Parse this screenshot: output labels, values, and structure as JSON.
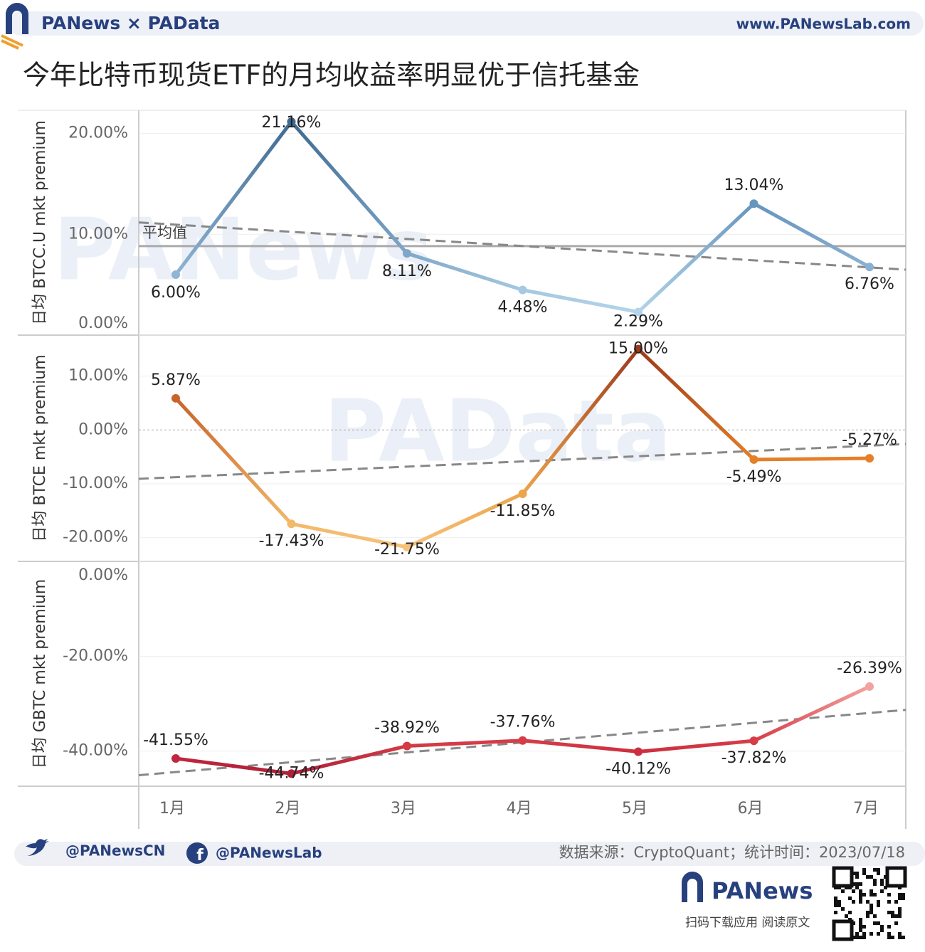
{
  "header": {
    "brand": "PANews × PAData",
    "url": "www.PANewsLab.com"
  },
  "title": "今年比特币现货ETF的月均收益率明显优于信托基金",
  "watermarks": [
    "PANews",
    "PAData"
  ],
  "chart_data": [
    {
      "type": "line",
      "y_label": "日均 BTCC.U mkt premium",
      "series": [
        {
          "values": [
            6.0,
            21.16,
            8.11,
            4.48,
            2.29,
            13.04,
            6.76
          ],
          "value_labels": [
            "6.00%",
            "21.16%",
            "8.11%",
            "4.48%",
            "2.29%",
            "13.04%",
            "6.76%"
          ],
          "point_colors": [
            "#8fb4d4",
            "#3f6a90",
            "#7ea7c9",
            "#a6c8e0",
            "#b3d4ea",
            "#6795bd",
            "#8bb0d2"
          ]
        }
      ],
      "ylim": [
        0,
        22.3
      ],
      "yticks": [
        {
          "value": 0,
          "label": "0.00%"
        },
        {
          "value": 10,
          "label": "10.00%"
        },
        {
          "value": 20,
          "label": "20.00%"
        }
      ],
      "grid": true,
      "trendline": true,
      "average_line": true,
      "average_label": "平均值"
    },
    {
      "type": "line",
      "y_label": "日均 BTCE mkt premium",
      "series": [
        {
          "values": [
            5.87,
            -17.43,
            -21.75,
            -11.85,
            15.0,
            -5.49,
            -5.27
          ],
          "value_labels": [
            "5.87%",
            "-17.43%",
            "-21.75%",
            "-11.85%",
            "15.00%",
            "-5.49%",
            "-5.27%"
          ],
          "point_colors": [
            "#c8632a",
            "#f3b86a",
            "#f6c27a",
            "#eda54c",
            "#9c3a1c",
            "#e57f28",
            "#e57f28"
          ]
        }
      ],
      "ylim": [
        -24.4,
        17.6
      ],
      "yticks": [
        {
          "value": -20,
          "label": "-20.00%"
        },
        {
          "value": -10,
          "label": "-10.00%"
        },
        {
          "value": 0,
          "label": "0.00%"
        },
        {
          "value": 10,
          "label": "10.00%"
        }
      ],
      "grid": true,
      "trendline": true,
      "zero_line": true
    },
    {
      "type": "line",
      "y_label": "日均 GBTC mkt premium",
      "categories": [
        "1月",
        "2月",
        "3月",
        "4月",
        "5月",
        "6月",
        "7月"
      ],
      "series": [
        {
          "values": [
            -41.55,
            -44.74,
            -38.92,
            -37.76,
            -40.12,
            -37.82,
            -26.39
          ],
          "value_labels": [
            "-41.55%",
            "-44.74%",
            "-38.92%",
            "-37.76%",
            "-40.12%",
            "-37.82%",
            "-26.39%"
          ],
          "point_colors": [
            "#c0263e",
            "#b01f3a",
            "#d33a45",
            "#d63d47",
            "#cc2f40",
            "#d63d47",
            "#f2a3a0"
          ]
        }
      ],
      "ylim": [
        -47.4,
        0
      ],
      "yticks": [
        {
          "value": -40,
          "label": "-40.00%"
        },
        {
          "value": -20,
          "label": "-20.00%"
        },
        {
          "value": 0,
          "label": "0.00%"
        }
      ],
      "grid": true,
      "trendline": true
    }
  ],
  "footer": {
    "twitter": "@PANewsCN",
    "facebook": "@PANewsLab",
    "source": "数据来源：CryptoQuant；统计时间：2023/07/18",
    "logo": "PANews",
    "qr_caption": "扫码下载应用 阅读原文"
  }
}
